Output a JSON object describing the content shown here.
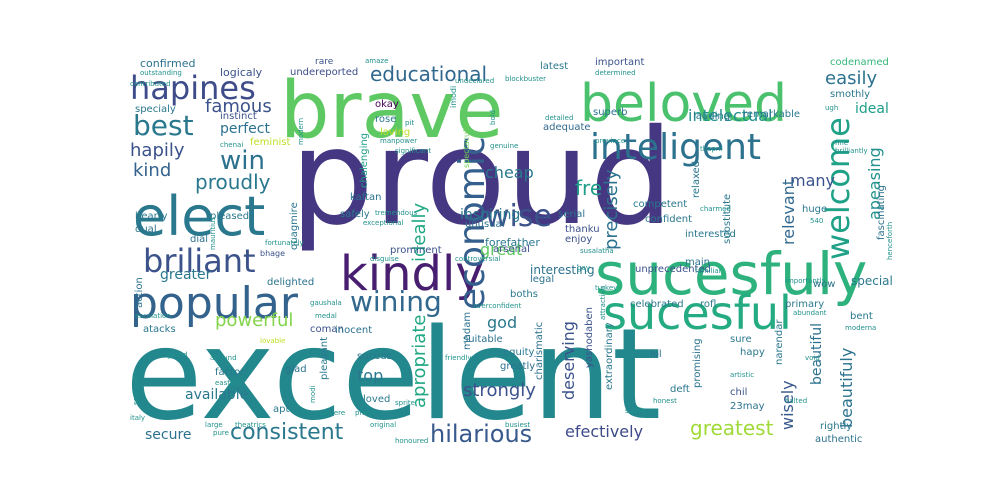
{
  "words": [
    {
      "text": "proud",
      "color": "#453781"
    },
    {
      "text": "excelent",
      "color": "#23888e"
    },
    {
      "text": "brave",
      "color": "#5ec962"
    },
    {
      "text": "sucesfuly",
      "color": "#2db27d"
    },
    {
      "text": "beloved",
      "color": "#4ac16d"
    },
    {
      "text": "elect",
      "color": "#2a788e"
    },
    {
      "text": "sucesful",
      "color": "#25ab82"
    },
    {
      "text": "kindly",
      "color": "#481f70"
    },
    {
      "text": "popular",
      "color": "#33638d"
    },
    {
      "text": "inteligent",
      "color": "#2c728e"
    },
    {
      "text": "briliant",
      "color": "#3b528b"
    },
    {
      "text": "hapines",
      "color": "#3e4c8a"
    },
    {
      "text": "welcome",
      "color": "#1fa187"
    },
    {
      "text": "best",
      "color": "#2a788e"
    },
    {
      "text": "educational",
      "color": "#31688e"
    },
    {
      "text": "win",
      "color": "#2c728e"
    },
    {
      "text": "wise",
      "color": "#3b528b"
    },
    {
      "text": "wining",
      "color": "#31688e"
    },
    {
      "text": "economic",
      "color": "#355f8d"
    },
    {
      "text": "consistent",
      "color": "#2a788e"
    },
    {
      "text": "hilarious",
      "color": "#38598c"
    },
    {
      "text": "greatest",
      "color": "#a0da39"
    },
    {
      "text": "easily",
      "color": "#2c728e"
    },
    {
      "text": "ideal",
      "color": "#1f9e89"
    },
    {
      "text": "proudly",
      "color": "#2a788e"
    },
    {
      "text": "famous",
      "color": "#3b528b"
    },
    {
      "text": "kind",
      "color": "#33638d"
    },
    {
      "text": "hapily",
      "color": "#3b528b"
    },
    {
      "text": "powerful",
      "color": "#84d44b"
    },
    {
      "text": "apeasing",
      "color": "#21918c"
    },
    {
      "text": "intelectual",
      "color": "#21918c"
    },
    {
      "text": "fre",
      "color": "#1f9e89"
    },
    {
      "text": "ideally",
      "color": "#22a884"
    },
    {
      "text": "precisely",
      "color": "#2c728e"
    },
    {
      "text": "apropriate",
      "color": "#22a884"
    },
    {
      "text": "efectively",
      "color": "#3e4a89"
    },
    {
      "text": "strongly",
      "color": "#3b528b"
    },
    {
      "text": "beautifuly",
      "color": "#2c728e"
    },
    {
      "text": "many",
      "color": "#3b528b"
    },
    {
      "text": "great",
      "color": "#5ec962"
    },
    {
      "text": "god",
      "color": "#2a788e"
    },
    {
      "text": "cheap",
      "color": "#2a788e"
    },
    {
      "text": "greater",
      "color": "#2a788e"
    },
    {
      "text": "secure",
      "color": "#2c728e"
    },
    {
      "text": "relevant",
      "color": "#31688e"
    },
    {
      "text": "wisely",
      "color": "#38598c"
    },
    {
      "text": "top",
      "color": "#2a788e"
    },
    {
      "text": "inspiring",
      "color": "#2a788e"
    },
    {
      "text": "deserving",
      "color": "#3b528b"
    },
    {
      "text": "available",
      "color": "#2a788e"
    },
    {
      "text": "perfect",
      "color": "#2c728e"
    },
    {
      "text": "beautiful",
      "color": "#2c728e"
    },
    {
      "text": "special",
      "color": "#2a788e"
    },
    {
      "text": "interesting",
      "color": "#2c728e"
    },
    {
      "text": "forefather",
      "color": "#2a788e"
    },
    {
      "text": "codenamed",
      "color": "#35b779"
    },
    {
      "text": "confirmed",
      "color": "#2c728e"
    },
    {
      "text": "logicaly",
      "color": "#3b528b"
    },
    {
      "text": "undereported",
      "color": "#3e4c8a"
    },
    {
      "text": "okay",
      "color": "#440154"
    },
    {
      "text": "rose",
      "color": "#2a788e"
    },
    {
      "text": "instinct",
      "color": "#3b528b"
    },
    {
      "text": "specialy",
      "color": "#2a788e"
    },
    {
      "text": "chalenging",
      "color": "#1f9e89"
    },
    {
      "text": "loving",
      "color": "#bddf26"
    },
    {
      "text": "feminist",
      "color": "#bddf26"
    },
    {
      "text": "kaftan",
      "color": "#2c728e"
    },
    {
      "text": "quagmire",
      "color": "#2a788e"
    },
    {
      "text": "safely",
      "color": "#2a788e"
    },
    {
      "text": "unusual",
      "color": "#2c728e"
    },
    {
      "text": "pleased",
      "color": "#2a788e"
    },
    {
      "text": "hearty",
      "color": "#2a788e"
    },
    {
      "text": "dual",
      "color": "#2c728e"
    },
    {
      "text": "dial",
      "color": "#2c728e"
    },
    {
      "text": "bhage",
      "color": "#3b528b"
    },
    {
      "text": "serial",
      "color": "#2c728e"
    },
    {
      "text": "thanku",
      "color": "#3b528b"
    },
    {
      "text": "enjoy",
      "color": "#3b528b"
    },
    {
      "text": "competent",
      "color": "#2a788e"
    },
    {
      "text": "confident",
      "color": "#2a788e"
    },
    {
      "text": "relaxed",
      "color": "#2a788e"
    },
    {
      "text": "interested",
      "color": "#2a788e"
    },
    {
      "text": "substitute",
      "color": "#2a788e"
    },
    {
      "text": "main",
      "color": "#2c728e"
    },
    {
      "text": "huge",
      "color": "#2a788e"
    },
    {
      "text": "fascinating",
      "color": "#2c728e"
    },
    {
      "text": "remarkable",
      "color": "#2a788e"
    },
    {
      "text": "lauding",
      "color": "#2a788e"
    },
    {
      "text": "adequate",
      "color": "#31688e"
    },
    {
      "text": "superb",
      "color": "#2c728e"
    },
    {
      "text": "important",
      "color": "#3b528b"
    },
    {
      "text": "latest",
      "color": "#2a788e"
    },
    {
      "text": "smothly",
      "color": "#2a788e"
    },
    {
      "text": "unprecedented",
      "color": "#3b528b"
    },
    {
      "text": "prominent",
      "color": "#3b528b"
    },
    {
      "text": "legal",
      "color": "#2c728e"
    },
    {
      "text": "boths",
      "color": "#2a788e"
    },
    {
      "text": "arsenal",
      "color": "#3b528b"
    },
    {
      "text": "celebrated",
      "color": "#2a788e"
    },
    {
      "text": "rofl",
      "color": "#2a788e"
    },
    {
      "text": "wow",
      "color": "#2c728e"
    },
    {
      "text": "primary",
      "color": "#2a788e"
    },
    {
      "text": "bent",
      "color": "#2a788e"
    },
    {
      "text": "delighted",
      "color": "#2c728e"
    },
    {
      "text": "action",
      "color": "#2c728e"
    },
    {
      "text": "atacks",
      "color": "#2a788e"
    },
    {
      "text": "coman",
      "color": "#3b528b"
    },
    {
      "text": "inocent",
      "color": "#2c728e"
    },
    {
      "text": "madam",
      "color": "#2c728e"
    },
    {
      "text": "suitable",
      "color": "#2c728e"
    },
    {
      "text": "equity",
      "color": "#2a788e"
    },
    {
      "text": "charismatic",
      "color": "#2c728e"
    },
    {
      "text": "extraordinary",
      "color": "#2a788e"
    },
    {
      "text": "yashodaben",
      "color": "#3b528b"
    },
    {
      "text": "lol",
      "color": "#2c728e"
    },
    {
      "text": "sure",
      "color": "#2a788e"
    },
    {
      "text": "hapy",
      "color": "#2a788e"
    },
    {
      "text": "chil",
      "color": "#3b528b"
    },
    {
      "text": "narendar",
      "color": "#2a788e"
    },
    {
      "text": "promising",
      "color": "#2c728e"
    },
    {
      "text": "suceds",
      "color": "#2a788e"
    },
    {
      "text": "pleasant",
      "color": "#2a788e"
    },
    {
      "text": "glad",
      "color": "#2c728e"
    },
    {
      "text": "factor",
      "color": "#2a788e"
    },
    {
      "text": "apt",
      "color": "#2a788e"
    },
    {
      "text": "loved",
      "color": "#2a788e"
    },
    {
      "text": "greatly",
      "color": "#2c728e"
    },
    {
      "text": "deft",
      "color": "#2a788e"
    },
    {
      "text": "23may",
      "color": "#2c728e"
    },
    {
      "text": "rightly",
      "color": "#2a788e"
    },
    {
      "text": "authentic",
      "color": "#2c728e"
    },
    {
      "text": "rare",
      "color": "#3b528b"
    },
    {
      "text": "outstanding",
      "color": "#21918c"
    },
    {
      "text": "amaze",
      "color": "#21918c"
    },
    {
      "text": "undeclared",
      "color": "#21918c"
    },
    {
      "text": "blockbuster",
      "color": "#21918c"
    },
    {
      "text": "determined",
      "color": "#21918c"
    },
    {
      "text": "contributed",
      "color": "#21918c"
    },
    {
      "text": "imodi",
      "color": "#21918c"
    },
    {
      "text": "detailed",
      "color": "#21918c"
    },
    {
      "text": "province",
      "color": "#21918c"
    },
    {
      "text": "manpower",
      "color": "#21918c"
    },
    {
      "text": "significant",
      "color": "#21918c"
    },
    {
      "text": "chenai",
      "color": "#21918c"
    },
    {
      "text": "genuine",
      "color": "#21918c"
    },
    {
      "text": "spectacular",
      "color": "#6ece58"
    },
    {
      "text": "tremendous",
      "color": "#21918c"
    },
    {
      "text": "exceptional",
      "color": "#21918c"
    },
    {
      "text": "fortunately",
      "color": "#21918c"
    },
    {
      "text": "disguise",
      "color": "#21918c"
    },
    {
      "text": "controversial",
      "color": "#21918c"
    },
    {
      "text": "gaushala",
      "color": "#21918c"
    },
    {
      "text": "medal",
      "color": "#21918c"
    },
    {
      "text": "escalation",
      "color": "#21918c"
    },
    {
      "text": "overconfident",
      "color": "#21918c"
    },
    {
      "text": "lovable",
      "color": "#bddf26"
    },
    {
      "text": "alround",
      "color": "#21918c"
    },
    {
      "text": "grand",
      "color": "#21918c"
    },
    {
      "text": "eastern",
      "color": "#21918c"
    },
    {
      "text": "sociopath",
      "color": "#21918c"
    },
    {
      "text": "modi",
      "color": "#21918c"
    },
    {
      "text": "sincere",
      "color": "#21918c"
    },
    {
      "text": "pheku",
      "color": "#21918c"
    },
    {
      "text": "sprite",
      "color": "#21918c"
    },
    {
      "text": "italy",
      "color": "#21918c"
    },
    {
      "text": "large",
      "color": "#21918c"
    },
    {
      "text": "theatrics",
      "color": "#21918c"
    },
    {
      "text": "original",
      "color": "#21918c"
    },
    {
      "text": "busiest",
      "color": "#21918c"
    },
    {
      "text": "surely",
      "color": "#21918c"
    },
    {
      "text": "honest",
      "color": "#21918c"
    },
    {
      "text": "artistic",
      "color": "#21918c"
    },
    {
      "text": "halted",
      "color": "#21918c"
    },
    {
      "text": "honoured",
      "color": "#21918c"
    },
    {
      "text": "friendly",
      "color": "#21918c"
    },
    {
      "text": "abundant",
      "color": "#21918c"
    },
    {
      "text": "void",
      "color": "#21918c"
    },
    {
      "text": "moderna",
      "color": "#21918c"
    },
    {
      "text": "turkey",
      "color": "#21918c"
    },
    {
      "text": "gay",
      "color": "#21918c"
    },
    {
      "text": "attractive",
      "color": "#21918c"
    },
    {
      "text": "modern",
      "color": "#21918c"
    },
    {
      "text": "bold",
      "color": "#21918c"
    },
    {
      "text": "pit",
      "color": "#21918c"
    },
    {
      "text": "thapril",
      "color": "#21918c"
    },
    {
      "text": "charmed",
      "color": "#21918c"
    },
    {
      "text": "ugh",
      "color": "#21918c"
    },
    {
      "text": "fine",
      "color": "#21918c"
    },
    {
      "text": "brilliantly",
      "color": "#21918c"
    },
    {
      "text": "mauritius",
      "color": "#21918c"
    },
    {
      "text": "henceforth",
      "color": "#21918c"
    },
    {
      "text": "importantly",
      "color": "#21918c"
    },
    {
      "text": "familiar",
      "color": "#21918c"
    },
    {
      "text": "540",
      "color": "#21918c"
    },
    {
      "text": "susalatha",
      "color": "#21918c"
    },
    {
      "text": "pure",
      "color": "#21918c"
    }
  ]
}
